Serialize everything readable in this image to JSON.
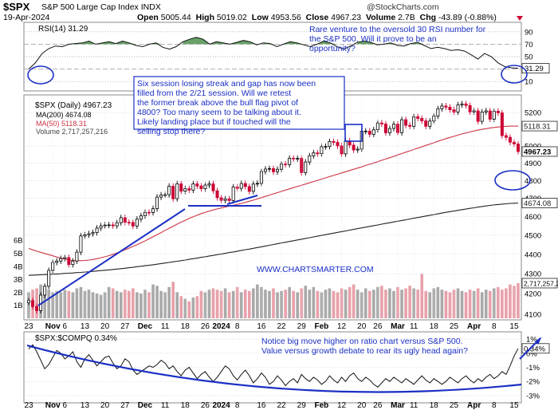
{
  "header": {
    "symbol": "$SPX",
    "name": "S&P 500 Large Cap Index",
    "exchange": "INDX",
    "date": "19-Apr-2024",
    "open_label": "Open",
    "open": "5005.44",
    "high_label": "High",
    "high": "5019.02",
    "low_label": "Low",
    "low": "4953.56",
    "close_label": "Close",
    "close": "4967.23",
    "volume_label": "Volume",
    "volume": "2.7B",
    "chg_label": "Chg",
    "chg": "-43.89 (-0.88%)",
    "credit": "@StockCharts.com"
  },
  "colors": {
    "up": "#000000",
    "down": "#cc0033",
    "ma50": "#cc3344",
    "ma200": "#222222",
    "volume_up": "#a9a9a9",
    "volume_down": "#e8a0aa",
    "annotation": "#1b2fc4",
    "rsi_fill": "#4f8f4f"
  },
  "chart_data": [
    {
      "type": "line",
      "panel": "rsi",
      "title": "RSI(14) 31.29",
      "last_value_label": "31.29",
      "ylim": [
        0,
        100
      ],
      "ticks": [
        "90",
        "70",
        "50",
        "30",
        "10"
      ],
      "tick_values": [
        90,
        70,
        50,
        30,
        10
      ],
      "overbought": 70,
      "oversold": 30,
      "values": [
        30,
        40,
        55,
        63,
        67,
        66,
        70,
        71,
        72,
        75,
        70,
        72,
        74,
        71,
        75,
        72,
        68,
        66,
        70,
        72,
        65,
        62,
        66,
        74,
        78,
        81,
        78,
        70,
        74,
        72,
        70,
        73,
        76,
        74,
        69,
        72,
        71,
        66,
        70,
        74,
        72,
        69,
        66,
        70,
        75,
        72,
        66,
        62,
        67,
        73,
        75,
        73,
        69,
        70,
        72,
        68,
        67,
        71,
        73,
        68,
        63,
        65,
        63,
        60,
        61,
        59,
        53,
        46,
        55,
        50,
        40,
        34,
        32,
        31.29
      ],
      "annotation": "Rare venture to the oversold 30 RSI number for the S&P 500. Will it prove to be an opportunity?"
    },
    {
      "type": "candlestick",
      "panel": "price",
      "title": "$SPX (Daily) 4967.23",
      "series": [
        {
          "name": "MA(200) 4674.08",
          "last": 4674.08,
          "label": "4674.08"
        },
        {
          "name": "MA(50) 5118.31",
          "last": 5118.31,
          "label": "5118.31"
        },
        {
          "name": "Volume 2,717,257,216",
          "label": "2,717,257,216"
        }
      ],
      "close_label": "4967.23",
      "ylim": [
        4080,
        5300
      ],
      "yscale": "log",
      "y_ticks": [
        "5200",
        "5000",
        "4900",
        "4800",
        "4700",
        "4600",
        "4500",
        "4400",
        "4300",
        "4200",
        "4100"
      ],
      "y_tick_values": [
        5200,
        5000,
        4900,
        4800,
        4700,
        4600,
        4500,
        4400,
        4300,
        4200,
        4100
      ],
      "volume_ticks": [
        "6B",
        "5B",
        "4B",
        "3B",
        "2B",
        "1B"
      ],
      "volume_tick_values": [
        6,
        5,
        4,
        3,
        2,
        1
      ],
      "volume_ylim": [
        0,
        6.5
      ],
      "close": [
        4166,
        4137,
        4117,
        4193,
        4237,
        4317,
        4358,
        4365,
        4378,
        4383,
        4347,
        4365,
        4411,
        4496,
        4502,
        4508,
        4514,
        4538,
        4550,
        4554,
        4555,
        4550,
        4567,
        4594,
        4569,
        4568,
        4549,
        4586,
        4604,
        4623,
        4622,
        4643,
        4707,
        4719,
        4720,
        4768,
        4698,
        4781,
        4740,
        4754,
        4746,
        4781,
        4769,
        4754,
        4774,
        4781,
        4742,
        4704,
        4689,
        4697,
        4688,
        4763,
        4756,
        4783,
        4766,
        4739,
        4780,
        4784,
        4851,
        4865,
        4868,
        4850,
        4864,
        4894,
        4891,
        4928,
        4924,
        4927,
        4845,
        4906,
        4942,
        4959,
        4954,
        4995,
        4997,
        5026,
        5021,
        5000,
        4953,
        5029,
        5005,
        4976,
        4981,
        5087,
        5088,
        5069,
        5096,
        5137,
        5131,
        5078,
        5104,
        5130,
        5079,
        5157,
        5123,
        5117,
        5175,
        5165,
        5150,
        5117,
        5149,
        5179,
        5224,
        5241,
        5234,
        5218,
        5204,
        5248,
        5254,
        5244,
        5205,
        5211,
        5147,
        5204,
        5211,
        5160,
        5209,
        5199,
        5061,
        5051,
        5022,
        5011,
        4967
      ],
      "volume": [
        2.0,
        2.2,
        2.3,
        2.6,
        2.5,
        2.2,
        2.0,
        2.1,
        2.0,
        2.2,
        2.1,
        2.0,
        2.3,
        2.4,
        2.1,
        2.2,
        2.0,
        1.9,
        1.8,
        2.0,
        2.4,
        2.3,
        2.1,
        2.0,
        2.2,
        2.1,
        2.3,
        2.0,
        1.9,
        2.2,
        2.0,
        2.6,
        2.5,
        2.1,
        2.0,
        2.4,
        2.8,
        2.0,
        1.7,
        1.5,
        1.3,
        1.6,
        1.7,
        2.1,
        2.0,
        2.2,
        2.3,
        2.2,
        2.1,
        2.3,
        2.0,
        2.1,
        2.4,
        2.0,
        2.2,
        2.1,
        2.3,
        2.6,
        2.4,
        2.2,
        2.1,
        2.3,
        2.0,
        2.1,
        2.2,
        2.4,
        2.1,
        2.0,
        2.3,
        2.5,
        2.2,
        2.4,
        2.1,
        2.0,
        2.2,
        2.3,
        2.1,
        2.0,
        2.3,
        2.2,
        2.4,
        2.6,
        2.2,
        2.0,
        2.3,
        2.1,
        2.2,
        2.4,
        2.5,
        2.2,
        2.3,
        2.1,
        2.4,
        2.2,
        2.3,
        2.5,
        2.3,
        2.2,
        3.4,
        2.1,
        2.0,
        2.3,
        2.4,
        2.2,
        2.1,
        2.0,
        2.2,
        2.3,
        2.1,
        2.0,
        2.2,
        2.1,
        2.3,
        2.0,
        2.2,
        2.1,
        2.3,
        2.4,
        2.2,
        2.3,
        2.6,
        2.5,
        2.7
      ],
      "ma50": [
        4430,
        4423,
        4416,
        4410,
        4404,
        4398,
        4392,
        4386,
        4380,
        4375,
        4370,
        4368,
        4367,
        4367,
        4368,
        4370,
        4373,
        4377,
        4382,
        4387,
        4393,
        4400,
        4407,
        4415,
        4423,
        4432,
        4441,
        4450,
        4460,
        4470,
        4481,
        4492,
        4503,
        4514,
        4526,
        4537,
        4548,
        4559,
        4570,
        4580,
        4590,
        4599,
        4608,
        4616,
        4623,
        4630,
        4636,
        4642,
        4647,
        4652,
        4657,
        4662,
        4667,
        4672,
        4678,
        4684,
        4690,
        4697,
        4704,
        4711,
        4718,
        4725,
        4732,
        4739,
        4746,
        4753,
        4760,
        4767,
        4773,
        4780,
        4787,
        4794,
        4801,
        4808,
        4815,
        4822,
        4829,
        4836,
        4843,
        4850,
        4857,
        4864,
        4871,
        4878,
        4886,
        4893,
        4900,
        4908,
        4916,
        4923,
        4931,
        4939,
        4947,
        4955,
        4963,
        4971,
        4979,
        4987,
        4995,
        5003,
        5011,
        5019,
        5027,
        5035,
        5043,
        5050,
        5057,
        5064,
        5071,
        5077,
        5083,
        5089,
        5094,
        5099,
        5103,
        5107,
        5110,
        5113,
        5115,
        5117,
        5118,
        5118,
        5118.31
      ],
      "ma200": [
        4292,
        4293,
        4294,
        4295,
        4296,
        4297,
        4298,
        4299,
        4300,
        4302,
        4303,
        4304,
        4306,
        4307,
        4309,
        4310,
        4312,
        4314,
        4316,
        4318,
        4320,
        4322,
        4324,
        4326,
        4328,
        4331,
        4333,
        4336,
        4338,
        4341,
        4343,
        4346,
        4349,
        4352,
        4355,
        4358,
        4361,
        4364,
        4367,
        4370,
        4374,
        4377,
        4380,
        4384,
        4387,
        4391,
        4394,
        4398,
        4401,
        4405,
        4409,
        4412,
        4416,
        4420,
        4424,
        4427,
        4431,
        4435,
        4439,
        4443,
        4447,
        4451,
        4455,
        4459,
        4463,
        4467,
        4471,
        4475,
        4479,
        4483,
        4487,
        4491,
        4495,
        4499,
        4503,
        4507,
        4511,
        4515,
        4519,
        4523,
        4527,
        4531,
        4535,
        4539,
        4543,
        4547,
        4551,
        4555,
        4559,
        4563,
        4567,
        4571,
        4575,
        4579,
        4583,
        4587,
        4591,
        4595,
        4599,
        4603,
        4607,
        4611,
        4615,
        4619,
        4623,
        4627,
        4630,
        4634,
        4638,
        4641,
        4645,
        4648,
        4652,
        4655,
        4658,
        4661,
        4664,
        4666,
        4668,
        4670,
        4672,
        4673,
        4674.08
      ],
      "watermark": "WWW.CHARTSMARTER.COM",
      "annotation": "Six session losing streak and gap has now been filled from the 2/21 session. Will we retest the former break above the bull flag pivot of 4800? Too many seem to be talking about it. Likely landing place but if touched will the selling stop there?"
    },
    {
      "type": "line",
      "panel": "ratio",
      "title": "$SPX:$COMPQ 0.34%",
      "last_value_label": "0.34%",
      "y_ticks": [
        "1%",
        "0%",
        "-1%",
        "-2%",
        "-3%"
      ],
      "y_tick_values": [
        1,
        0,
        -1,
        -2,
        -3
      ],
      "ylim": [
        -3.4,
        1.4
      ],
      "values": [
        0.3,
        0.6,
        0.1,
        -0.5,
        -1.1,
        -0.8,
        -0.3,
        0.2,
        0.0,
        -0.4,
        -0.2,
        0.1,
        -0.6,
        -1.0,
        -0.4,
        -0.1,
        -0.5,
        -0.9,
        -0.6,
        -0.3,
        -0.2,
        -0.7,
        -1.1,
        -0.9,
        -0.4,
        -0.6,
        -1.2,
        -1.5,
        -1.3,
        -1.1,
        -0.9,
        -1.0,
        -0.8,
        -0.5,
        -0.7,
        -1.1,
        -0.9,
        -1.3,
        -1.6,
        -1.2,
        -1.0,
        -1.4,
        -1.8,
        -1.5,
        -1.3,
        -1.7,
        -2.0,
        -1.7,
        -1.3,
        -0.9,
        -1.1,
        -1.6,
        -1.9,
        -1.5,
        -1.2,
        -1.6,
        -2.1,
        -1.8,
        -1.4,
        -1.7,
        -2.2,
        -2.0,
        -1.6,
        -1.9,
        -2.3,
        -2.0,
        -1.8,
        -2.1,
        -1.5,
        -1.8,
        -2.0,
        -1.7,
        -1.9,
        -2.2,
        -2.0,
        -1.6,
        -1.9,
        -2.1,
        -1.7,
        -2.0,
        -1.6,
        -1.4,
        -1.8,
        -2.0,
        -1.7,
        -1.9,
        -2.2,
        -2.4,
        -2.1,
        -1.8,
        -2.0,
        -1.7,
        -1.9,
        -2.1,
        -1.8,
        -2.0,
        -2.2,
        -1.9,
        -1.6,
        -1.9,
        -2.1,
        -1.8,
        -2.0,
        -2.2,
        -2.0,
        -1.7,
        -1.9,
        -2.1,
        -1.8,
        -1.6,
        -1.9,
        -2.1,
        -1.8,
        -2.0,
        -1.7,
        -1.5,
        -1.8,
        -1.6,
        -1.3,
        -1.5,
        -0.9,
        -0.2,
        0.34
      ],
      "annotation": "Notice big move higher on ratio chart versus S&P 500. Value versus growth debate to rear its ugly head again?"
    }
  ],
  "x_axis": {
    "labels": [
      "23",
      "Nov",
      "6",
      "13",
      "20",
      "27",
      "Dec",
      "11",
      "18",
      "26",
      "2024",
      "8",
      "16",
      "22",
      "29",
      "Feb",
      "12",
      "20",
      "26",
      "Mar",
      "11",
      "18",
      "25",
      "Apr",
      "8",
      "15"
    ],
    "bold": [
      "Nov",
      "Dec",
      "2024",
      "Feb",
      "Mar",
      "Apr"
    ],
    "label_index": [
      0,
      6,
      9,
      14,
      19,
      24,
      29,
      34,
      39,
      44,
      48,
      52,
      58,
      63,
      68,
      73,
      78,
      83,
      87,
      92,
      96,
      101,
      106,
      111,
      116,
      121
    ]
  }
}
